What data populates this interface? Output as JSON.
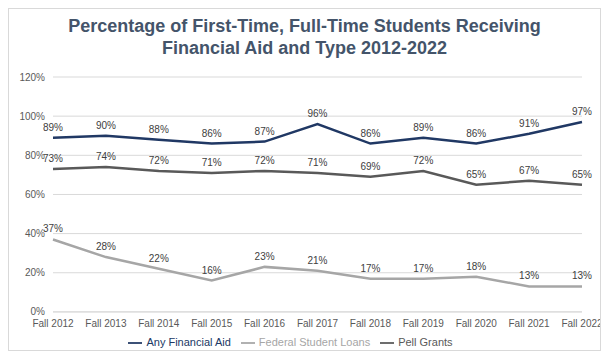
{
  "chart_data": {
    "type": "line",
    "title": "Percentage of First-Time, Full-Time Students Receiving Financial Aid and Type 2012-2022",
    "categories": [
      "Fall 2012",
      "Fall 2013",
      "Fall 2014",
      "Fall 2015",
      "Fall 2016",
      "Fall 2017",
      "Fall 2018",
      "Fall 2019",
      "Fall 2020",
      "Fall 2021",
      "Fall 2022"
    ],
    "series": [
      {
        "name": "Any Financial Aid",
        "color": "#203864",
        "values": [
          89,
          90,
          88,
          86,
          87,
          96,
          86,
          89,
          86,
          91,
          97
        ],
        "value_labels": [
          "89%",
          "90%",
          "88%",
          "86%",
          "87%",
          "96%",
          "86%",
          "89%",
          "86%",
          "91%",
          "97%"
        ]
      },
      {
        "name": "Pell Grants",
        "color": "#595959",
        "values": [
          73,
          74,
          72,
          71,
          72,
          71,
          69,
          72,
          65,
          67,
          65
        ],
        "value_labels": [
          "73%",
          "74%",
          "72%",
          "71%",
          "72%",
          "71%",
          "69%",
          "72%",
          "65%",
          "67%",
          "65%"
        ]
      },
      {
        "name": "Federal Student Loans",
        "color": "#a6a6a6",
        "values": [
          37,
          28,
          22,
          16,
          23,
          21,
          17,
          17,
          18,
          13,
          13
        ],
        "value_labels": [
          "37%",
          "28%",
          "22%",
          "16%",
          "23%",
          "21%",
          "17%",
          "17%",
          "18%",
          "13%",
          "13%"
        ]
      }
    ],
    "ylim": [
      0,
      120
    ],
    "yticks": [
      {
        "value": 0,
        "label": "0%"
      },
      {
        "value": 20,
        "label": "20%"
      },
      {
        "value": 40,
        "label": "40%"
      },
      {
        "value": 60,
        "label": "60%"
      },
      {
        "value": 80,
        "label": "80%"
      },
      {
        "value": 100,
        "label": "100%"
      },
      {
        "value": 120,
        "label": "120%"
      }
    ],
    "grid": true,
    "legend": "bottom",
    "data_labels": true
  }
}
